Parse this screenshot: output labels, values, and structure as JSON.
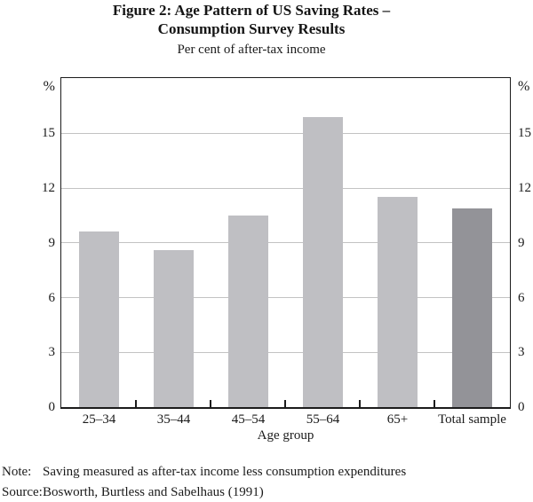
{
  "figure": {
    "title_line1": "Figure 2: Age Pattern of US Saving Rates –",
    "title_line2": "Consumption Survey Results",
    "subtitle": "Per cent of after-tax income",
    "note_label": "Note:",
    "note_text": "Saving measured as after-tax income less consumption expenditures",
    "source_label": "Source:",
    "source_text": "Bosworth, Burtless and Sabelhaus (1991)"
  },
  "chart_data": {
    "type": "bar",
    "title": "Figure 2: Age Pattern of US Saving Rates – Consumption Survey Results",
    "subtitle": "Per cent of after-tax income",
    "categories": [
      "25–34",
      "35–44",
      "45–54",
      "55–64",
      "65+",
      "Total sample"
    ],
    "values": [
      9.6,
      8.6,
      10.5,
      15.9,
      11.5,
      10.9
    ],
    "xlabel": "Age group",
    "ylabel": "%",
    "unit_label": "%",
    "ylim": [
      0,
      18
    ],
    "yticks": [
      0,
      3,
      6,
      9,
      12,
      15
    ],
    "grid": true,
    "legend": "none",
    "bar_color_default": "#bfbfc3",
    "bar_color_highlight": "#939398",
    "bar_colors": [
      "#bfbfc3",
      "#bfbfc3",
      "#bfbfc3",
      "#bfbfc3",
      "#bfbfc3",
      "#939398"
    ],
    "highlight_category": "Total sample"
  }
}
